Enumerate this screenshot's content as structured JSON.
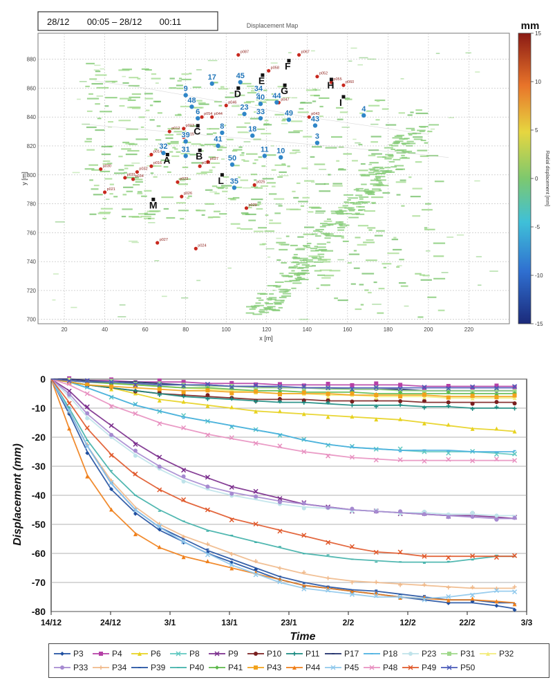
{
  "map": {
    "date_range": "28/12       00:05 – 28/12       00:11",
    "title": "Displacement Map",
    "xlabel": "x [m]",
    "ylabel": "y [m]",
    "colorbar_unit": "mm",
    "colorbar_label": "Radial displacement [mm]",
    "colorbar_ticks": [
      "15",
      "10",
      "5",
      "0",
      "-5",
      "-10",
      "-15"
    ],
    "x_ticks": [
      "20",
      "40",
      "60",
      "80",
      "100",
      "120",
      "140",
      "160",
      "180",
      "200",
      "220"
    ],
    "y_ticks": [
      "880",
      "860",
      "840",
      "820",
      "800",
      "780",
      "760",
      "740",
      "720",
      "700"
    ],
    "colors": {
      "zero": "#7dc86e",
      "point": "#2f86c8",
      "prism": "#c8281e",
      "marker": "#111111"
    },
    "point_labels": [
      {
        "t": "17",
        "x": 93,
        "y": 866
      },
      {
        "t": "45",
        "x": 107,
        "y": 867
      },
      {
        "t": "E",
        "x": 118,
        "y": 869
      },
      {
        "t": "F",
        "x": 131,
        "y": 879
      },
      {
        "t": "H",
        "x": 152,
        "y": 866
      },
      {
        "t": "9",
        "x": 80,
        "y": 858
      },
      {
        "t": "D",
        "x": 106,
        "y": 860
      },
      {
        "t": "34",
        "x": 116,
        "y": 858
      },
      {
        "t": "G",
        "x": 129,
        "y": 862
      },
      {
        "t": "I",
        "x": 158,
        "y": 854
      },
      {
        "t": "48",
        "x": 83,
        "y": 850
      },
      {
        "t": "40",
        "x": 117,
        "y": 852
      },
      {
        "t": "44",
        "x": 125,
        "y": 853
      },
      {
        "t": "23",
        "x": 109,
        "y": 845
      },
      {
        "t": "33",
        "x": 117,
        "y": 842
      },
      {
        "t": "4",
        "x": 168,
        "y": 844
      },
      {
        "t": "6",
        "x": 86,
        "y": 842
      },
      {
        "t": "49",
        "x": 131,
        "y": 841
      },
      {
        "t": "43",
        "x": 144,
        "y": 837
      },
      {
        "t": "C",
        "x": 86,
        "y": 834
      },
      {
        "t": "8",
        "x": 98,
        "y": 832
      },
      {
        "t": "18",
        "x": 113,
        "y": 830
      },
      {
        "t": "39",
        "x": 80,
        "y": 826
      },
      {
        "t": "41",
        "x": 96,
        "y": 823
      },
      {
        "t": "3",
        "x": 145,
        "y": 825
      },
      {
        "t": "32",
        "x": 69,
        "y": 818
      },
      {
        "t": "A",
        "x": 71,
        "y": 814
      },
      {
        "t": "31",
        "x": 80,
        "y": 816
      },
      {
        "t": "B",
        "x": 87,
        "y": 817
      },
      {
        "t": "11",
        "x": 119,
        "y": 816
      },
      {
        "t": "10",
        "x": 127,
        "y": 815
      },
      {
        "t": "50",
        "x": 103,
        "y": 810
      },
      {
        "t": "L",
        "x": 98,
        "y": 800
      },
      {
        "t": "35",
        "x": 104,
        "y": 794
      },
      {
        "t": "M",
        "x": 64,
        "y": 783
      }
    ],
    "prism_labels": [
      {
        "t": "p087",
        "x": 106,
        "y": 883
      },
      {
        "t": "p067",
        "x": 136,
        "y": 883
      },
      {
        "t": "p058",
        "x": 121,
        "y": 872
      },
      {
        "t": "p052",
        "x": 145,
        "y": 868
      },
      {
        "t": "p055",
        "x": 152,
        "y": 864
      },
      {
        "t": "p060",
        "x": 158,
        "y": 862
      },
      {
        "t": "p046",
        "x": 100,
        "y": 848
      },
      {
        "t": "p047",
        "x": 126,
        "y": 850
      },
      {
        "t": "p044",
        "x": 93,
        "y": 840
      },
      {
        "t": "p054",
        "x": 88,
        "y": 840
      },
      {
        "t": "p043",
        "x": 141,
        "y": 840
      },
      {
        "t": "p012",
        "x": 72,
        "y": 830
      },
      {
        "t": "p013",
        "x": 79,
        "y": 832
      },
      {
        "t": "p015",
        "x": 79,
        "y": 826
      },
      {
        "t": "p014",
        "x": 63,
        "y": 814
      },
      {
        "t": "p027",
        "x": 91,
        "y": 809
      },
      {
        "t": "p016",
        "x": 63,
        "y": 806
      },
      {
        "t": "p028",
        "x": 87,
        "y": 806
      },
      {
        "t": "p030",
        "x": 38,
        "y": 804
      },
      {
        "t": "p031",
        "x": 50,
        "y": 798
      },
      {
        "t": "p032",
        "x": 56,
        "y": 802
      },
      {
        "t": "p021",
        "x": 40,
        "y": 788
      },
      {
        "t": "p034",
        "x": 54,
        "y": 797
      },
      {
        "t": "p023",
        "x": 76,
        "y": 795
      },
      {
        "t": "p025",
        "x": 114,
        "y": 793
      },
      {
        "t": "p026",
        "x": 78,
        "y": 785
      },
      {
        "t": "p029",
        "x": 110,
        "y": 777
      },
      {
        "t": "p027",
        "x": 66,
        "y": 753
      },
      {
        "t": "p024",
        "x": 85,
        "y": 749
      }
    ],
    "lines": [
      {
        "x": [
          35,
          60,
          100,
          140,
          180,
          200
        ],
        "y": [
          865,
          860,
          850,
          840,
          832,
          828
        ]
      },
      {
        "x": [
          30,
          70,
          110,
          150,
          190,
          210
        ],
        "y": [
          835,
          830,
          825,
          820,
          815,
          812
        ]
      }
    ]
  },
  "chart_data": {
    "type": "line",
    "xlabel": "Time",
    "ylabel": "Displacement (mm)",
    "x_tick_labels": [
      "14/12",
      "24/12",
      "3/1",
      "13/1",
      "23/1",
      "2/2",
      "12/2",
      "22/2",
      "3/3"
    ],
    "y_tick_labels": [
      "0",
      "-10",
      "-20",
      "-30",
      "-40",
      "-50",
      "-60",
      "-70",
      "-80"
    ],
    "xlim_days": [
      0,
      79
    ],
    "ylim": [
      -80,
      0
    ],
    "grid": true,
    "legend_position": "bottom",
    "x_days": [
      0,
      3,
      6,
      10,
      14,
      18,
      22,
      26,
      30,
      34,
      38,
      42,
      46,
      50,
      54,
      58,
      62,
      66,
      70,
      74,
      77
    ],
    "series": [
      {
        "name": "P3",
        "color": "#1f4fa0",
        "marker": "diamond",
        "y": [
          0,
          -12,
          -25,
          -38,
          -46,
          -52,
          -56,
          -60,
          -63,
          -66,
          -69,
          -71,
          -72,
          -73,
          -74,
          -75,
          -76,
          -77,
          -77,
          -78,
          -79
        ]
      },
      {
        "name": "P4",
        "color": "#b53fa6",
        "marker": "square",
        "y": [
          0,
          0,
          -0.5,
          -0.5,
          -1,
          -1,
          -1,
          -1.5,
          -1.5,
          -1.5,
          -2,
          -2,
          -2,
          -2,
          -2,
          -2,
          -2.5,
          -2.5,
          -2.5,
          -2.5,
          -2.5
        ]
      },
      {
        "name": "P6",
        "color": "#e7d21f",
        "marker": "triangle",
        "y": [
          0,
          -1,
          -2,
          -3,
          -5,
          -7,
          -8,
          -9,
          -10,
          -11,
          -11.5,
          -12,
          -12.5,
          -13,
          -13.5,
          -14,
          -15,
          -16,
          -17,
          -17.5,
          -18
        ]
      },
      {
        "name": "P8",
        "color": "#5fc8c0",
        "marker": "x",
        "y": [
          0,
          -1,
          -3,
          -6,
          -9,
          -11,
          -13,
          -14.5,
          -16,
          -17.5,
          -19,
          -21,
          -22.5,
          -23.5,
          -24,
          -24.5,
          -25,
          -25,
          -25,
          -25.5,
          -26
        ]
      },
      {
        "name": "P9",
        "color": "#7a2c8c",
        "marker": "x",
        "y": [
          0,
          -4,
          -10,
          -16,
          -22,
          -27,
          -31,
          -34,
          -37,
          -39,
          -41,
          -43,
          -44,
          -45,
          -45.5,
          -46,
          -46.5,
          -47,
          -47,
          -47.5,
          -48
        ]
      },
      {
        "name": "P10",
        "color": "#7a1f1f",
        "marker": "circle",
        "y": [
          0,
          -1,
          -2,
          -3,
          -4,
          -5,
          -5.5,
          -6,
          -6.5,
          -7,
          -7,
          -7,
          -7.5,
          -7.5,
          -7.5,
          -7.5,
          -8,
          -8,
          -8,
          -8,
          -8
        ]
      },
      {
        "name": "P11",
        "color": "#1a8a80",
        "marker": "plus",
        "y": [
          0,
          -1,
          -2,
          -3,
          -4,
          -5,
          -6,
          -6.5,
          -7,
          -7.5,
          -8,
          -8,
          -8.5,
          -9,
          -9,
          -9,
          -9.5,
          -9.5,
          -10,
          -10,
          -10
        ]
      },
      {
        "name": "P17",
        "color": "#1a2a66",
        "marker": "line",
        "y": [
          0,
          0,
          -0.5,
          -1,
          -1,
          -1.5,
          -2,
          -2,
          -2.5,
          -2.5,
          -3,
          -3,
          -3,
          -3.5,
          -3.5,
          -3.5,
          -4,
          -4,
          -4,
          -4,
          -4
        ]
      },
      {
        "name": "P18",
        "color": "#4ab0e0",
        "marker": "line",
        "y": [
          0,
          -1,
          -3,
          -6,
          -9,
          -11,
          -13,
          -14.5,
          -16,
          -17.5,
          -19,
          -21,
          -22.5,
          -23.5,
          -24,
          -24.5,
          -24.5,
          -24.5,
          -25,
          -25,
          -25
        ]
      },
      {
        "name": "P23",
        "color": "#bfe3ea",
        "marker": "circle",
        "y": [
          0,
          -6,
          -13,
          -20,
          -26,
          -31,
          -35,
          -38,
          -40,
          -41.5,
          -43,
          -44,
          -44.5,
          -45,
          -45.5,
          -46,
          -46,
          -46.5,
          -46.5,
          -47,
          -47
        ]
      },
      {
        "name": "P31",
        "color": "#9fd88a",
        "marker": "square",
        "y": [
          0,
          -0.5,
          -1,
          -1,
          -1.5,
          -2,
          -2,
          -2.5,
          -2.5,
          -3,
          -3,
          -3,
          -3.5,
          -3.5,
          -3.5,
          -4,
          -4,
          -4,
          -4,
          -4,
          -4
        ]
      },
      {
        "name": "P32",
        "color": "#f3ec7a",
        "marker": "triangle",
        "y": [
          0,
          -0.5,
          -1,
          -1.5,
          -2,
          -2.5,
          -3,
          -3.5,
          -4,
          -4.5,
          -5,
          -5,
          -5.5,
          -5.5,
          -6,
          -6,
          -6,
          -6.5,
          -6.5,
          -6.5,
          -6.5
        ]
      },
      {
        "name": "P33",
        "color": "#a68ad0",
        "marker": "circle",
        "y": [
          0,
          -5,
          -12,
          -19,
          -25,
          -30,
          -34,
          -37,
          -39,
          -40.5,
          -42,
          -43,
          -44,
          -45,
          -45.5,
          -46,
          -46.5,
          -47,
          -47.5,
          -48,
          -48
        ]
      },
      {
        "name": "P34",
        "color": "#f0b98a",
        "marker": "plus",
        "y": [
          0,
          -11,
          -23,
          -35,
          -44,
          -50,
          -54,
          -57,
          -60,
          -63,
          -65,
          -67,
          -68.5,
          -69.5,
          -70,
          -70.5,
          -71,
          -71.5,
          -72,
          -72,
          -72
        ]
      },
      {
        "name": "P39",
        "color": "#1f4fa0",
        "marker": "line",
        "y": [
          0,
          -11,
          -23,
          -36,
          -45,
          -51,
          -55,
          -59,
          -62,
          -65,
          -68,
          -70,
          -71.5,
          -72.5,
          -73,
          -74,
          -75,
          -76,
          -76,
          -77,
          -77
        ]
      },
      {
        "name": "P40",
        "color": "#3fb0a8",
        "marker": "line",
        "y": [
          0,
          -10,
          -21,
          -32,
          -40,
          -45,
          -49,
          -52,
          -54,
          -56,
          -58,
          -60,
          -61,
          -62,
          -62.5,
          -63,
          -63,
          -63,
          -62,
          -61,
          -61
        ]
      },
      {
        "name": "P41",
        "color": "#5cb84a",
        "marker": "diamond",
        "y": [
          0,
          -0.5,
          -1,
          -1.5,
          -2,
          -2.5,
          -3,
          -3,
          -3.5,
          -4,
          -4,
          -4.5,
          -4.5,
          -4.5,
          -5,
          -5,
          -5,
          -5,
          -5,
          -5,
          -5
        ]
      },
      {
        "name": "P43",
        "color": "#f2a21b",
        "marker": "square",
        "y": [
          0,
          -1,
          -2,
          -2.5,
          -3,
          -3.5,
          -4,
          -4,
          -4.5,
          -4.5,
          -5,
          -5,
          -5,
          -5.5,
          -5.5,
          -5.5,
          -5.5,
          -6,
          -6,
          -6,
          -6
        ]
      },
      {
        "name": "P44",
        "color": "#ef7f1a",
        "marker": "triangle",
        "y": [
          0,
          -17,
          -33,
          -45,
          -53,
          -58,
          -61,
          -63,
          -65,
          -67,
          -69,
          -71,
          -72,
          -73,
          -74,
          -75,
          -75.5,
          -76,
          -76,
          -76.5,
          -77
        ]
      },
      {
        "name": "P45",
        "color": "#8fc8ec",
        "marker": "x",
        "y": [
          0,
          -11,
          -23,
          -36,
          -45,
          -51,
          -56,
          -60,
          -64,
          -67,
          -70,
          -72,
          -73,
          -74,
          -75,
          -75,
          -75.5,
          -75,
          -74,
          -73,
          -73
        ]
      },
      {
        "name": "P48",
        "color": "#e890c0",
        "marker": "x",
        "y": [
          0,
          -2,
          -5,
          -9,
          -12,
          -15,
          -17,
          -19,
          -20.5,
          -22,
          -23.5,
          -25,
          -26,
          -27,
          -27.5,
          -28,
          -28,
          -28,
          -28,
          -28,
          -28
        ]
      },
      {
        "name": "P49",
        "color": "#e0582a",
        "marker": "x",
        "y": [
          0,
          -8,
          -17,
          -26,
          -33,
          -38,
          -42,
          -45,
          -48,
          -50,
          -52,
          -54,
          -56,
          -58,
          -59.5,
          -60,
          -61,
          -61,
          -61,
          -61,
          -61
        ]
      },
      {
        "name": "P50",
        "color": "#4a5ab8",
        "marker": "x",
        "y": [
          0,
          -0.5,
          -1,
          -1,
          -1.5,
          -2,
          -2,
          -2,
          -2.5,
          -2.5,
          -2.5,
          -3,
          -3,
          -3,
          -3,
          -3,
          -3,
          -3,
          -3,
          -3,
          -3
        ]
      }
    ]
  }
}
